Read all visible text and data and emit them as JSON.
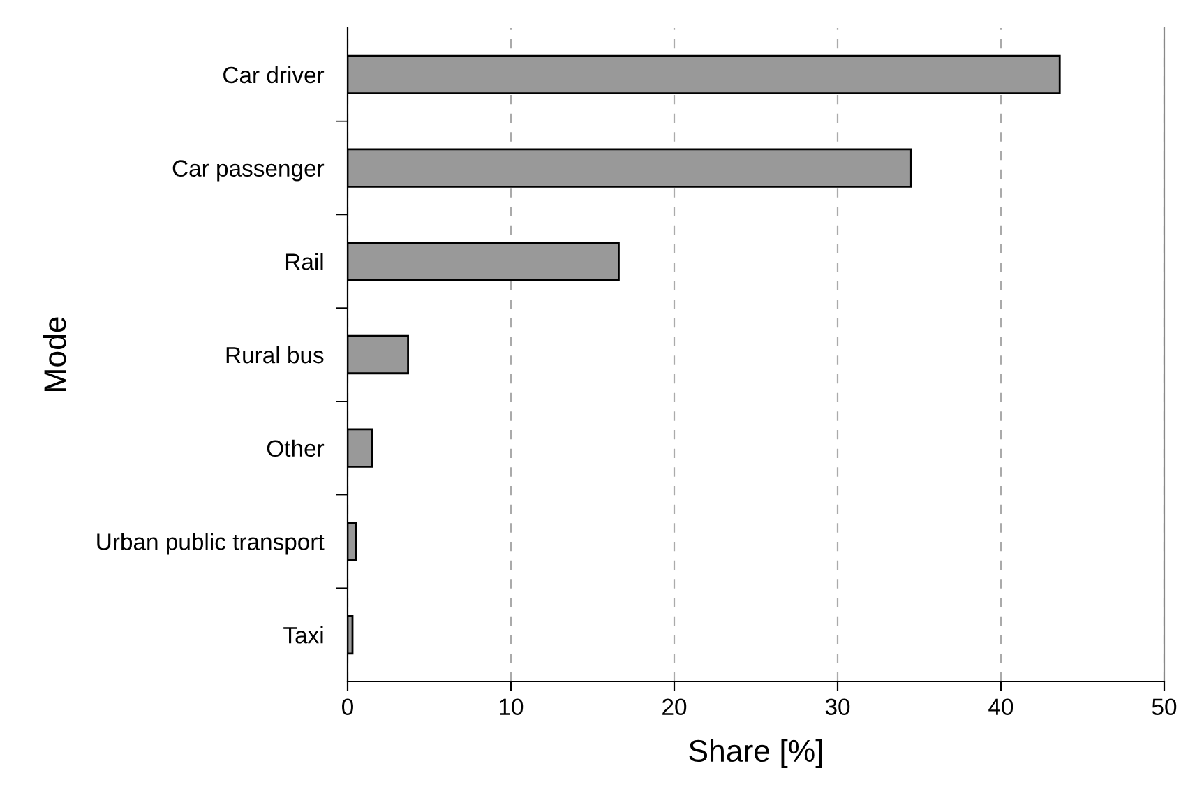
{
  "chart_data": {
    "type": "bar",
    "orientation": "horizontal",
    "xlabel": "Share [%]",
    "ylabel": "Mode",
    "categories": [
      "Car driver",
      "Car passenger",
      "Rail",
      "Rural bus",
      "Other",
      "Urban public transport",
      "Taxi"
    ],
    "values": [
      43.6,
      34.5,
      16.6,
      3.7,
      1.5,
      0.5,
      0.3
    ],
    "color": "#999999",
    "xlim": [
      0,
      50
    ],
    "xticks": [
      0,
      10,
      20,
      30,
      40,
      50
    ],
    "grid": "x"
  }
}
